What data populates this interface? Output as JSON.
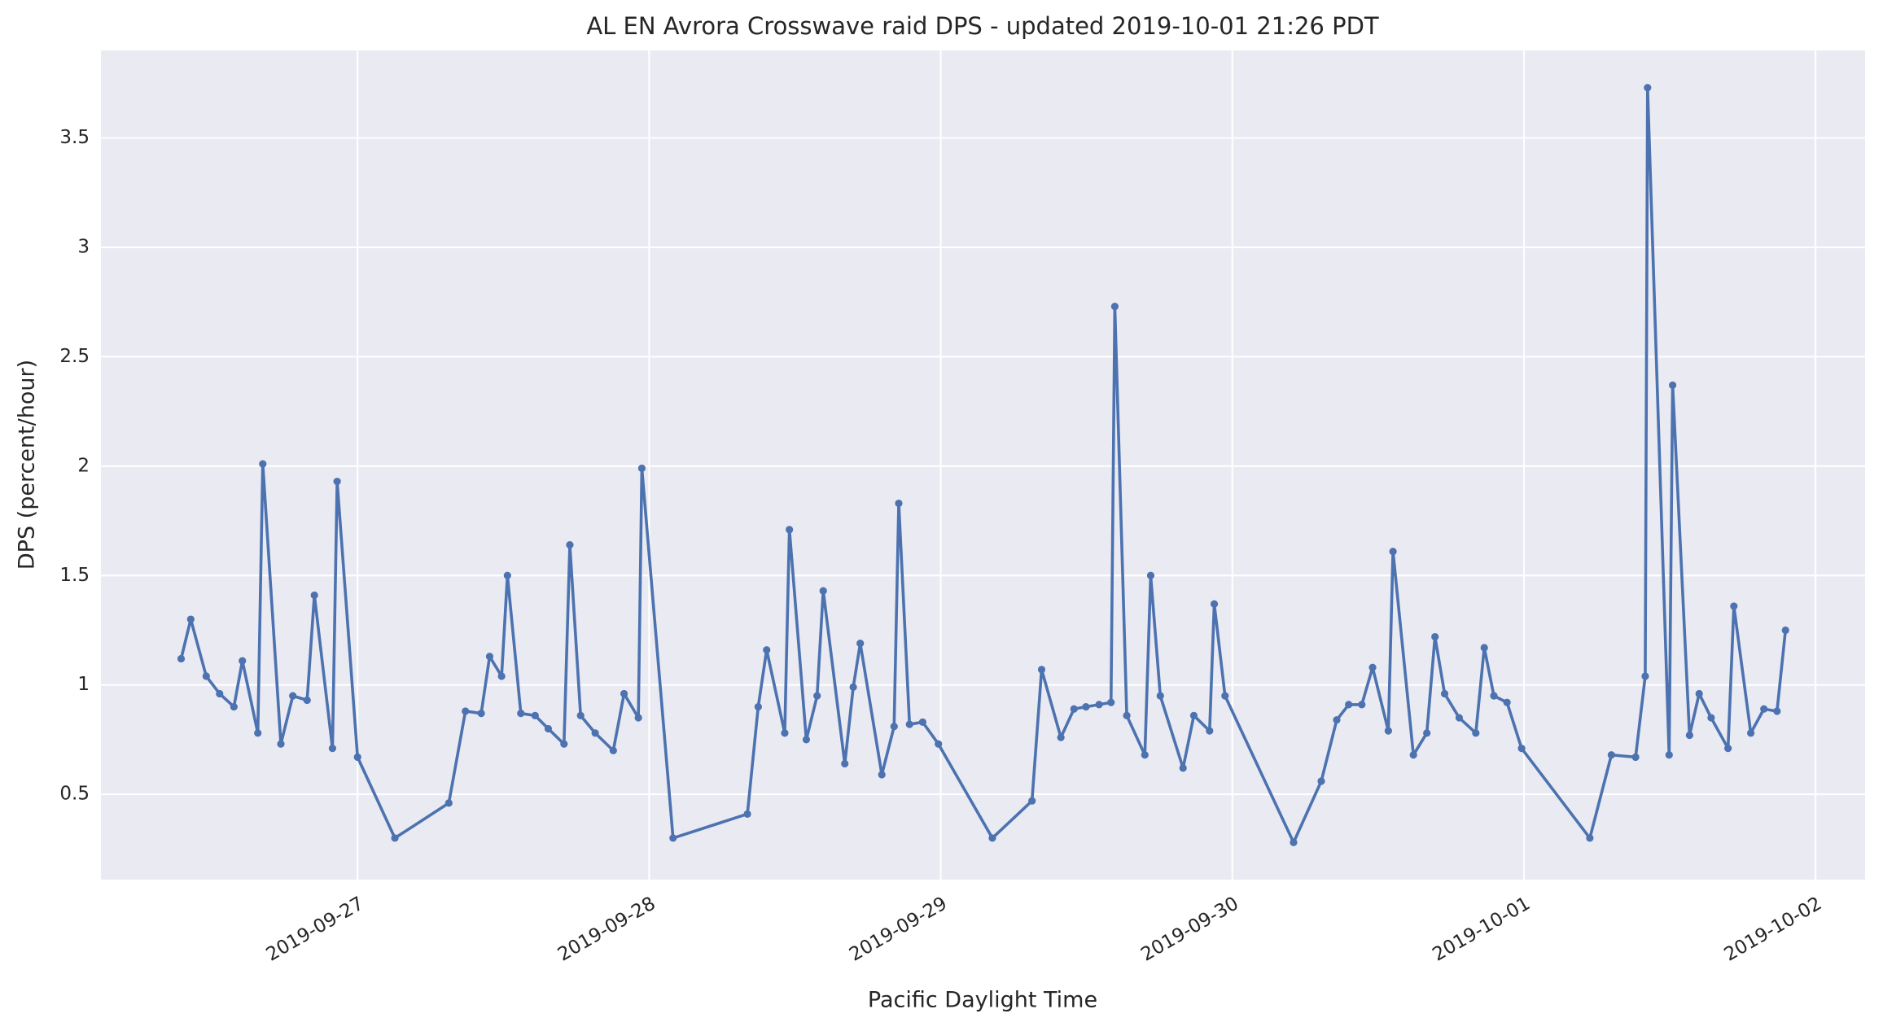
{
  "chart_data": {
    "type": "line",
    "title": "AL EN Avrora Crosswave raid DPS - updated 2019-10-01 21:26 PDT",
    "x_label": "Pacific Daylight Time",
    "y_label": "DPS (percent/hour)",
    "color": "#4c72b0",
    "grid": true,
    "markers": true,
    "xlim": [
      269.12,
      275.17
    ],
    "ylim": [
      0.11,
      3.9
    ],
    "xticks": [
      {
        "value": 270,
        "label": "2019-09-27"
      },
      {
        "value": 271,
        "label": "2019-09-28"
      },
      {
        "value": 272,
        "label": "2019-09-29"
      },
      {
        "value": 273,
        "label": "2019-09-30"
      },
      {
        "value": 274,
        "label": "2019-10-01"
      },
      {
        "value": 275,
        "label": "2019-10-02"
      }
    ],
    "yticks": [
      0.5,
      1.0,
      1.5,
      2.0,
      2.5,
      3.0,
      3.5
    ],
    "x": [
      269.395,
      269.428,
      269.481,
      269.527,
      269.576,
      269.605,
      269.658,
      269.675,
      269.737,
      269.778,
      269.827,
      269.852,
      269.914,
      269.93,
      270.0,
      270.128,
      270.313,
      270.37,
      270.424,
      270.453,
      270.494,
      270.514,
      270.56,
      270.609,
      270.654,
      270.708,
      270.728,
      270.765,
      270.815,
      270.877,
      270.914,
      270.963,
      270.975,
      271.082,
      271.337,
      271.374,
      271.403,
      271.465,
      271.481,
      271.539,
      271.576,
      271.597,
      271.671,
      271.7,
      271.724,
      271.798,
      271.84,
      271.856,
      271.893,
      271.938,
      271.992,
      272.177,
      272.313,
      272.346,
      272.412,
      272.457,
      272.498,
      272.543,
      272.584,
      272.597,
      272.638,
      272.7,
      272.72,
      272.753,
      272.831,
      272.868,
      272.922,
      272.938,
      272.975,
      273.21,
      273.305,
      273.358,
      273.399,
      273.444,
      273.481,
      273.535,
      273.551,
      273.621,
      273.667,
      273.695,
      273.728,
      273.778,
      273.835,
      273.864,
      273.897,
      273.942,
      273.992,
      274.226,
      274.3,
      274.383,
      274.416,
      274.424,
      274.498,
      274.51,
      274.568,
      274.601,
      274.642,
      274.7,
      274.72,
      274.778,
      274.823,
      274.868,
      274.897
    ],
    "values": [
      1.12,
      1.3,
      1.04,
      0.96,
      0.9,
      1.11,
      0.78,
      2.01,
      0.73,
      0.95,
      0.93,
      1.41,
      0.71,
      1.93,
      0.67,
      0.3,
      0.46,
      0.88,
      0.87,
      1.13,
      1.04,
      1.5,
      0.87,
      0.86,
      0.8,
      0.73,
      1.64,
      0.86,
      0.78,
      0.7,
      0.96,
      0.85,
      1.99,
      0.3,
      0.41,
      0.9,
      1.16,
      0.78,
      1.71,
      0.75,
      0.95,
      1.43,
      0.64,
      0.99,
      1.19,
      0.59,
      0.81,
      1.83,
      0.82,
      0.83,
      0.73,
      0.3,
      0.47,
      1.07,
      0.76,
      0.89,
      0.9,
      0.91,
      0.92,
      2.73,
      0.86,
      0.68,
      1.5,
      0.95,
      0.62,
      0.86,
      0.79,
      1.37,
      0.95,
      0.28,
      0.56,
      0.84,
      0.91,
      0.91,
      1.08,
      0.79,
      1.61,
      0.68,
      0.78,
      1.22,
      0.96,
      0.85,
      0.78,
      1.17,
      0.95,
      0.92,
      0.71,
      0.3,
      0.68,
      0.67,
      1.04,
      3.73,
      0.68,
      2.37,
      0.77,
      0.96,
      0.85,
      0.71,
      1.36,
      0.78,
      0.89,
      0.88,
      1.25
    ]
  }
}
